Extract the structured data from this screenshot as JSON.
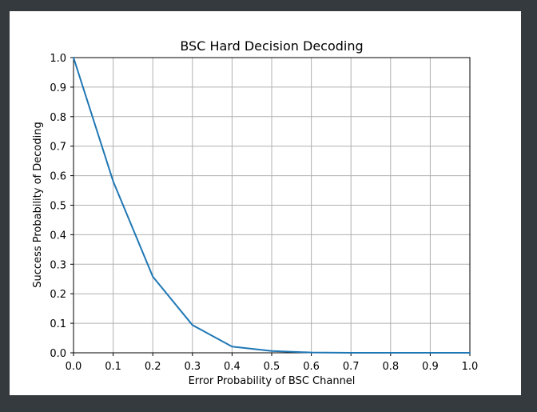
{
  "chart_data": {
    "type": "line",
    "title": "BSC Hard Decision Decoding",
    "xlabel": "Error Probability of BSC Channel",
    "ylabel": "Success Probability of Decoding",
    "xlim": [
      0.0,
      1.0
    ],
    "ylim": [
      0.0,
      1.0
    ],
    "xticks": [
      "0.0",
      "0.1",
      "0.2",
      "0.3",
      "0.4",
      "0.5",
      "0.6",
      "0.7",
      "0.8",
      "0.9",
      "1.0"
    ],
    "yticks": [
      "0.0",
      "0.1",
      "0.2",
      "0.3",
      "0.4",
      "0.5",
      "0.6",
      "0.7",
      "0.8",
      "0.9",
      "1.0"
    ],
    "grid": true,
    "legend": false,
    "series": [
      {
        "color": "#1f77b4",
        "x": [
          0.0,
          0.1,
          0.2,
          0.3,
          0.4,
          0.5,
          0.6,
          0.7,
          0.8,
          0.9,
          1.0
        ],
        "y": [
          1.0,
          0.581,
          0.258,
          0.094,
          0.021,
          0.006,
          0.001,
          0.0,
          0.0,
          0.0,
          0.0
        ]
      }
    ]
  }
}
